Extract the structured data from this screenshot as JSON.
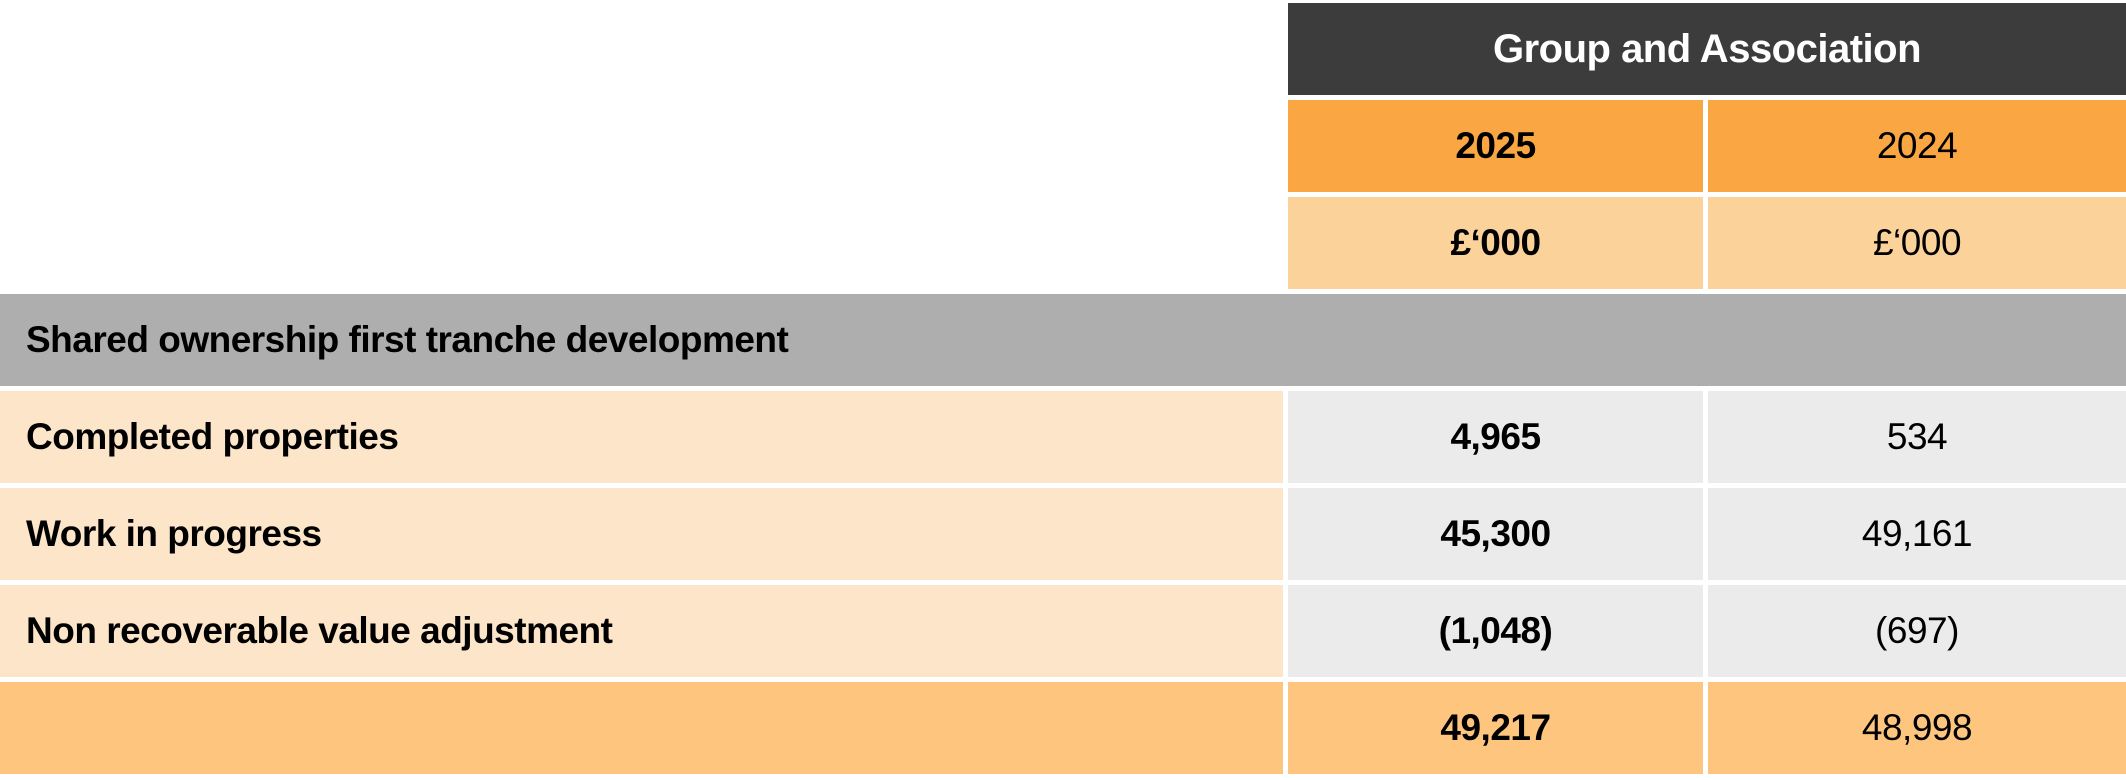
{
  "table": {
    "title": "Group and Association",
    "columns": [
      {
        "year": "2025",
        "unit": "£‘000"
      },
      {
        "year": "2024",
        "unit": "£‘000"
      }
    ],
    "section_header": "Shared ownership first tranche development",
    "rows": [
      {
        "label": "Completed properties",
        "v2025": "4,965",
        "v2024": "534"
      },
      {
        "label": "Work in progress",
        "v2025": "45,300",
        "v2024": "49,161"
      },
      {
        "label": "Non recoverable value adjustment",
        "v2025": "(1,048)",
        "v2024": "(697)"
      }
    ],
    "total": {
      "v2025": "49,217",
      "v2024": "48,998"
    }
  },
  "colors": {
    "header_dark": "#3C3C3C",
    "year_orange": "#FAA743",
    "unit_orange": "#FCD29B",
    "banner_grey": "#AEAEAE",
    "label_peach": "#FCE5C8",
    "value_grey": "#EBEBEB",
    "total_orange": "#FDC57E",
    "header_text": "#FFFFFF",
    "body_text": "#000000"
  }
}
